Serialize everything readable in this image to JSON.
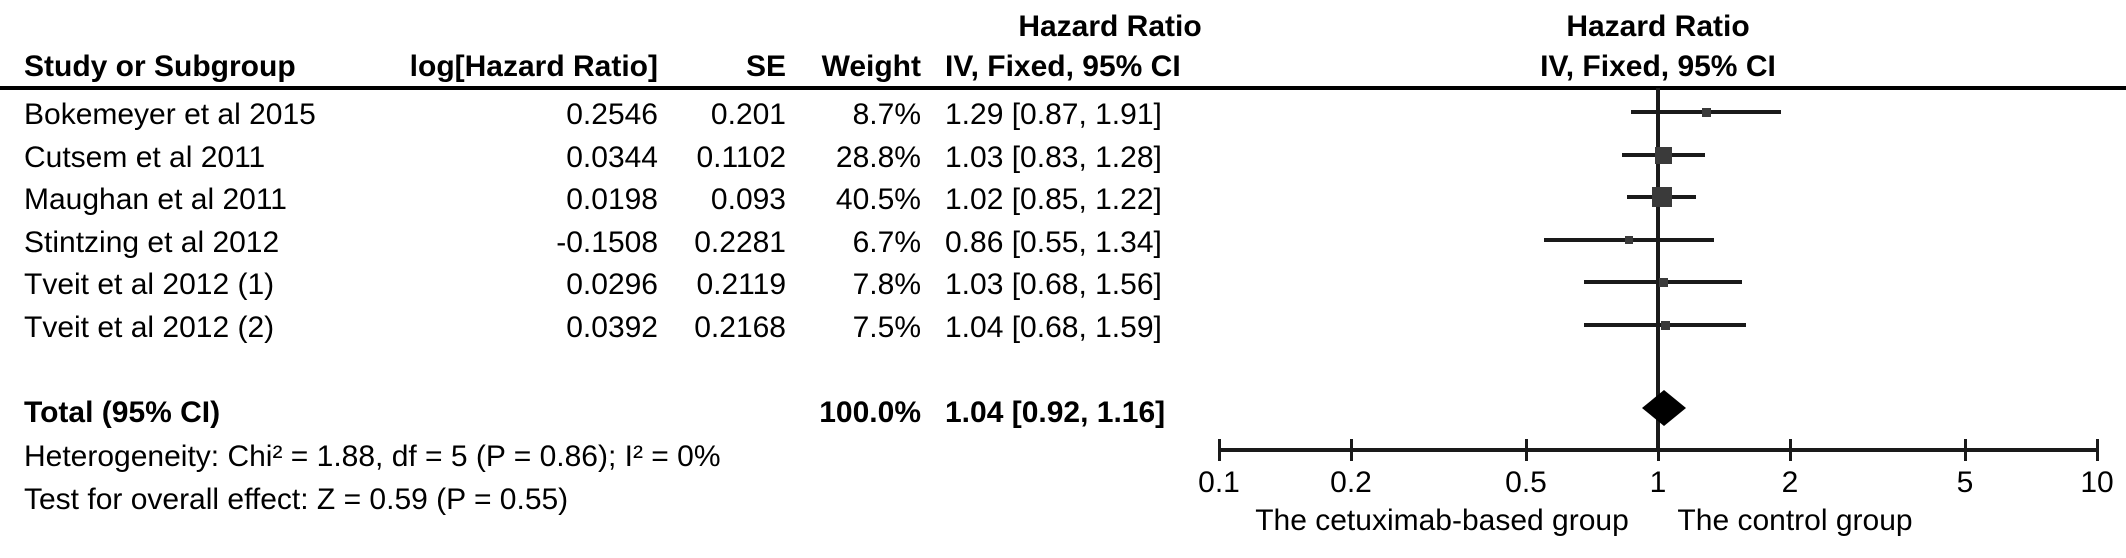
{
  "table": {
    "group_header": "Hazard Ratio",
    "col_headers": {
      "study": "Study or Subgroup",
      "log_hr": "log[Hazard Ratio]",
      "se": "SE",
      "weight": "Weight",
      "ci": "IV, Fixed, 95% CI"
    },
    "rows": [
      {
        "study": "Bokemeyer et al 2015",
        "log_hr": "0.2546",
        "se": "0.201",
        "weight": "8.7%",
        "ci": "1.29 [0.87, 1.91]"
      },
      {
        "study": "Cutsem et al 2011",
        "log_hr": "0.0344",
        "se": "0.1102",
        "weight": "28.8%",
        "ci": "1.03 [0.83, 1.28]"
      },
      {
        "study": "Maughan et al 2011",
        "log_hr": "0.0198",
        "se": "0.093",
        "weight": "40.5%",
        "ci": "1.02 [0.85, 1.22]"
      },
      {
        "study": "Stintzing et al 2012",
        "log_hr": "-0.1508",
        "se": "0.2281",
        "weight": "6.7%",
        "ci": "0.86 [0.55, 1.34]"
      },
      {
        "study": "Tveit et al 2012 (1)",
        "log_hr": "0.0296",
        "se": "0.2119",
        "weight": "7.8%",
        "ci": "1.03 [0.68, 1.56]"
      },
      {
        "study": "Tveit et al 2012 (2)",
        "log_hr": "0.0392",
        "se": "0.2168",
        "weight": "7.5%",
        "ci": "1.04 [0.68, 1.59]"
      }
    ],
    "total": {
      "label": "Total (95% CI)",
      "weight": "100.0%",
      "ci": "1.04 [0.92, 1.16]"
    },
    "heterogeneity": "Heterogeneity: Chi² = 1.88, df = 5 (P = 0.86); I² = 0%",
    "overall_effect": "Test for overall effect: Z = 0.59 (P = 0.55)"
  },
  "plot_header": {
    "line1": "Hazard Ratio",
    "line2": "IV, Fixed, 95% CI"
  },
  "chart_data": {
    "type": "forest",
    "x_scale": "log10",
    "axis_range": [
      0.1,
      10
    ],
    "axis_ticks": [
      0.1,
      0.2,
      0.5,
      1,
      2,
      5,
      10
    ],
    "null_line": 1,
    "studies": [
      {
        "name": "Bokemeyer et al 2015",
        "hr": 1.29,
        "ci_low": 0.87,
        "ci_high": 1.91,
        "weight": 8.7
      },
      {
        "name": "Cutsem et al 2011",
        "hr": 1.03,
        "ci_low": 0.83,
        "ci_high": 1.28,
        "weight": 28.8
      },
      {
        "name": "Maughan et al 2011",
        "hr": 1.02,
        "ci_low": 0.85,
        "ci_high": 1.22,
        "weight": 40.5
      },
      {
        "name": "Stintzing et al 2012",
        "hr": 0.86,
        "ci_low": 0.55,
        "ci_high": 1.34,
        "weight": 6.7
      },
      {
        "name": "Tveit et al 2012 (1)",
        "hr": 1.03,
        "ci_low": 0.68,
        "ci_high": 1.56,
        "weight": 7.8
      },
      {
        "name": "Tveit et al 2012 (2)",
        "hr": 1.04,
        "ci_low": 0.68,
        "ci_high": 1.59,
        "weight": 7.5
      }
    ],
    "total": {
      "hr": 1.04,
      "ci_low": 0.92,
      "ci_high": 1.16,
      "weight": 100.0
    },
    "fixed_effect_model": "IV, Fixed, 95% CI",
    "heterogeneity": {
      "chi2": 1.88,
      "df": 5,
      "p": 0.86,
      "i2_pct": 0
    },
    "overall_effect": {
      "z": 0.59,
      "p": 0.55
    },
    "left_label": "The cetuximab-based group",
    "right_label": "The control group",
    "marker_color": "#3a3a3a",
    "line_color": "#1a1a1a",
    "diamond_color": "#000000"
  }
}
